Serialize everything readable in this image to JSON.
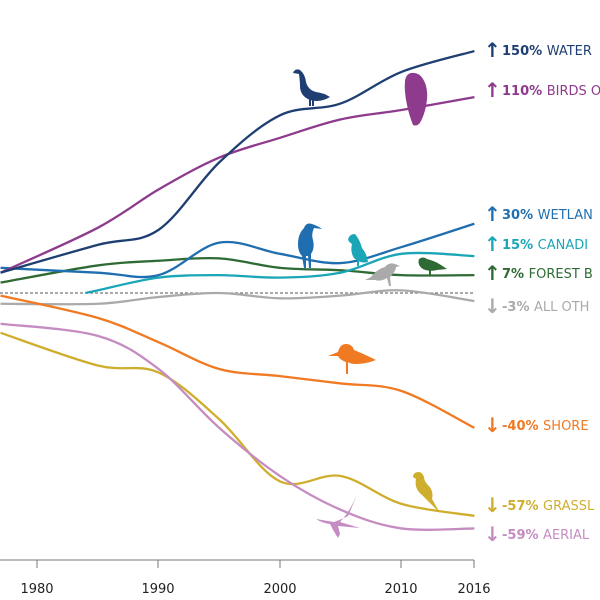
{
  "chart_data": {
    "type": "line",
    "title": "",
    "xlabel": "",
    "ylabel": "",
    "x_scale": "linear",
    "y_scale": "log (index of change)",
    "xlim": [
      1977,
      2016
    ],
    "x_ticks": [
      "1980",
      "1990",
      "2000",
      "2010",
      "2016"
    ],
    "baseline_dashed": 0,
    "grid": false,
    "legend": "right (inline labels at line ends)",
    "x": [
      1977,
      1985,
      1990,
      1995,
      2000,
      2005,
      2010,
      2016
    ],
    "series": [
      {
        "key": "waterfowl",
        "pct_label": "150%",
        "name": "WATER",
        "direction": "up",
        "color": "#1f3f73",
        "values": [
          8,
          20,
          27,
          64,
          96,
          105,
          131,
          150
        ]
      },
      {
        "key": "prey",
        "pct_label": "110%",
        "name": "BIRDS O",
        "direction": "up",
        "color": "#8e3b8e",
        "values": [
          8,
          28,
          48,
          67,
          80,
          93,
          100,
          110
        ]
      },
      {
        "key": "wetland",
        "pct_label": "30%",
        "name": "WETLAN",
        "direction": "up",
        "color": "#1f6fb0",
        "values": [
          10,
          8,
          7,
          21,
          16,
          12,
          19,
          30
        ]
      },
      {
        "key": "arctic",
        "pct_label": "15%",
        "name": "CANADI",
        "direction": "up",
        "color": "#1aa6b7",
        "x_start": 1984,
        "values": [
          null,
          1,
          6,
          7,
          6,
          8,
          16,
          15
        ]
      },
      {
        "key": "forest",
        "pct_label": "7%",
        "name": "FOREST B",
        "direction": "up",
        "color": "#2e6b34",
        "values": [
          4,
          11,
          13,
          14,
          10,
          9,
          7,
          7
        ]
      },
      {
        "key": "other",
        "pct_label": "-3%",
        "name": "ALL OTH",
        "direction": "down",
        "color": "#aaaaaa",
        "values": [
          -4,
          -4,
          -1.5,
          0,
          -2,
          -1,
          1,
          -3
        ]
      },
      {
        "key": "shorebirds",
        "pct_label": "-40%",
        "name": "SHORE",
        "direction": "down",
        "color": "#f07a22",
        "values": [
          -1,
          -9,
          -17,
          -25,
          -27,
          -29,
          -31,
          -40
        ]
      },
      {
        "key": "grassland",
        "pct_label": "-57%",
        "name": "GRASSL",
        "direction": "down",
        "color": "#cfae2e",
        "values": [
          -14,
          -24,
          -26,
          -38,
          -51,
          -50,
          -55,
          -57
        ]
      },
      {
        "key": "aerial",
        "pct_label": "-59%",
        "name": "AERIAL",
        "direction": "down",
        "color": "#c58cc2",
        "values": [
          -11,
          -15,
          -25,
          -40,
          -50,
          -56,
          -59,
          -59
        ]
      }
    ],
    "icons": [
      "goose-silhouette-icon",
      "hawk-silhouette-icon",
      "heron-silhouette-icon",
      "puffin-silhouette-icon",
      "crow-silhouette-icon",
      "parrot-silhouette-icon",
      "shorebird-silhouette-icon",
      "songbird-silhouette-icon",
      "swallow-silhouette-icon"
    ]
  }
}
